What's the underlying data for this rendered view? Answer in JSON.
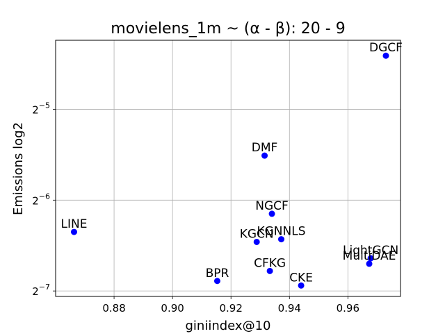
{
  "chart_data": {
    "type": "scatter",
    "title": "movielens_1m ~ (α - β): 20 - 9",
    "xlabel": "giniindex@10",
    "ylabel": "Emissions log2",
    "xlim": [
      0.86,
      0.978
    ],
    "ylim_log2": [
      -7.06,
      -4.24
    ],
    "y_scale": "log2",
    "grid": true,
    "marker_color": "#0000ff",
    "x_ticks": [
      0.88,
      0.9,
      0.92,
      0.94,
      0.96
    ],
    "x_tick_labels": [
      "0.88",
      "0.90",
      "0.92",
      "0.94",
      "0.96"
    ],
    "y_ticks_log2": [
      -5,
      -6,
      -7
    ],
    "y_tick_labels": [
      {
        "base": "2",
        "exp": "−5"
      },
      {
        "base": "2",
        "exp": "−6"
      },
      {
        "base": "2",
        "exp": "−7"
      }
    ],
    "points": [
      {
        "label": "DGCF",
        "x": 0.973,
        "y_log2": -4.41
      },
      {
        "label": "DMF",
        "x": 0.9315,
        "y_log2": -5.51
      },
      {
        "label": "NGCF",
        "x": 0.934,
        "y_log2": -6.15
      },
      {
        "label": "LINE",
        "x": 0.8663,
        "y_log2": -6.35
      },
      {
        "label": "KGCN",
        "x": 0.9288,
        "y_log2": -6.46
      },
      {
        "label": "KGNNLS",
        "x": 0.9372,
        "y_log2": -6.43
      },
      {
        "label": "LightGCN",
        "x": 0.9678,
        "y_log2": -6.64
      },
      {
        "label": "MultiDAE",
        "x": 0.9673,
        "y_log2": -6.7
      },
      {
        "label": "CFKG",
        "x": 0.9333,
        "y_log2": -6.78
      },
      {
        "label": "BPR",
        "x": 0.9153,
        "y_log2": -6.89
      },
      {
        "label": "CKE",
        "x": 0.944,
        "y_log2": -6.94
      }
    ]
  }
}
